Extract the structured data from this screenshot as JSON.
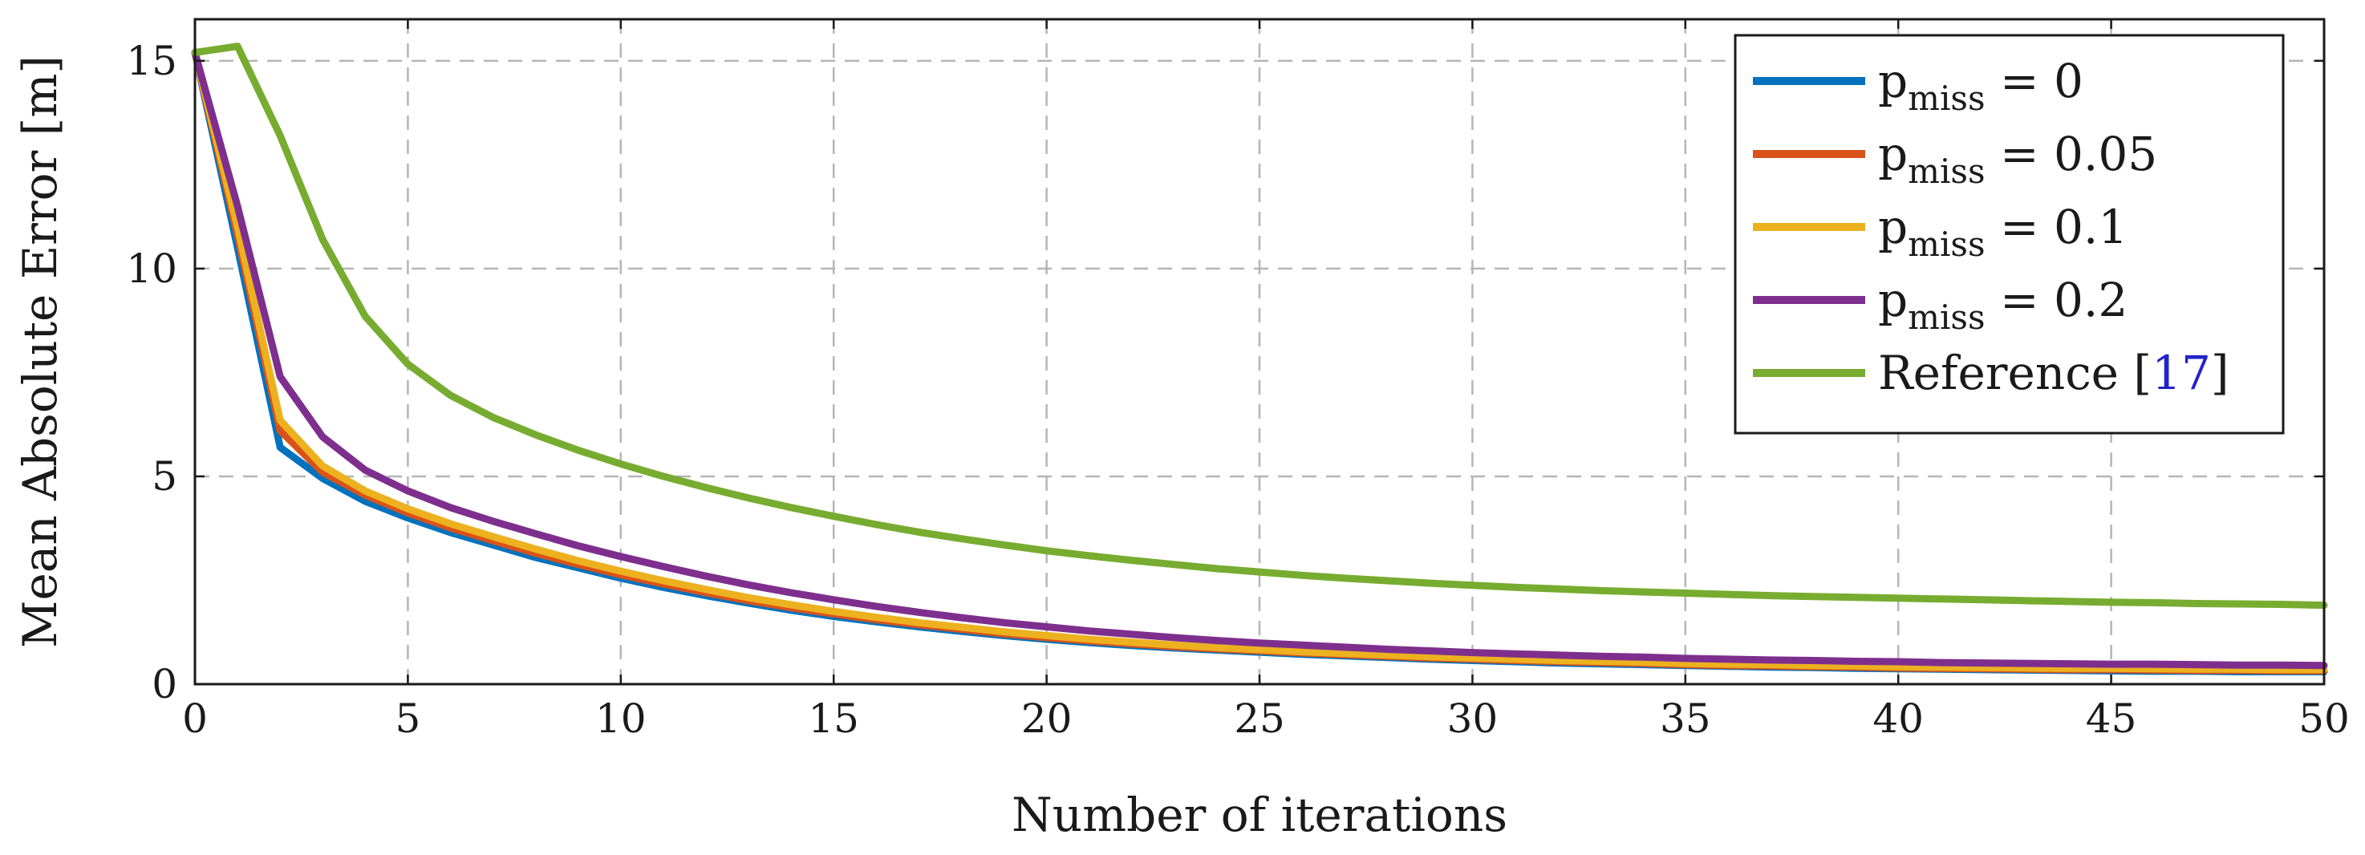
{
  "chart_data": {
    "type": "line",
    "title": "",
    "xlabel": "Number of iterations",
    "ylabel": "Mean Absolute Error [m]",
    "xlim": [
      0,
      50
    ],
    "ylim": [
      0,
      16
    ],
    "xticks": [
      0,
      5,
      10,
      15,
      20,
      25,
      30,
      35,
      40,
      45,
      50
    ],
    "yticks": [
      0,
      5,
      10,
      15
    ],
    "grid": true,
    "legend_position": "top-right",
    "x": [
      0,
      1,
      2,
      3,
      4,
      5,
      6,
      7,
      8,
      9,
      10,
      11,
      12,
      13,
      14,
      15,
      16,
      17,
      18,
      19,
      20,
      21,
      22,
      23,
      24,
      25,
      26,
      27,
      28,
      29,
      30,
      31,
      32,
      33,
      34,
      35,
      36,
      37,
      38,
      39,
      40,
      41,
      42,
      43,
      44,
      45,
      46,
      47,
      48,
      49,
      50
    ],
    "series": [
      {
        "legend_prefix": "p",
        "legend_sub": "miss",
        "legend_suffix": " = 0",
        "color": "#0072BD",
        "values": [
          15.2,
          10.5,
          5.7,
          4.95,
          4.4,
          4.0,
          3.65,
          3.35,
          3.05,
          2.8,
          2.55,
          2.33,
          2.13,
          1.95,
          1.78,
          1.63,
          1.5,
          1.38,
          1.27,
          1.17,
          1.08,
          1.0,
          0.93,
          0.87,
          0.82,
          0.77,
          0.72,
          0.68,
          0.64,
          0.6,
          0.57,
          0.54,
          0.51,
          0.49,
          0.47,
          0.45,
          0.43,
          0.41,
          0.4,
          0.38,
          0.37,
          0.36,
          0.35,
          0.34,
          0.33,
          0.32,
          0.31,
          0.31,
          0.3,
          0.3,
          0.3
        ]
      },
      {
        "legend_prefix": "p",
        "legend_sub": "miss",
        "legend_suffix": " = 0.05",
        "color": "#D95319",
        "values": [
          15.2,
          10.8,
          6.1,
          5.1,
          4.55,
          4.12,
          3.76,
          3.45,
          3.15,
          2.88,
          2.63,
          2.41,
          2.2,
          2.01,
          1.84,
          1.69,
          1.55,
          1.43,
          1.32,
          1.21,
          1.12,
          1.04,
          0.97,
          0.9,
          0.85,
          0.8,
          0.75,
          0.71,
          0.67,
          0.63,
          0.6,
          0.57,
          0.54,
          0.52,
          0.5,
          0.47,
          0.45,
          0.44,
          0.42,
          0.41,
          0.39,
          0.38,
          0.37,
          0.36,
          0.35,
          0.35,
          0.34,
          0.33,
          0.33,
          0.32,
          0.32
        ]
      },
      {
        "legend_prefix": "p",
        "legend_sub": "miss",
        "legend_suffix": " = 0.1",
        "color": "#EDB120",
        "values": [
          15.2,
          11.0,
          6.35,
          5.25,
          4.65,
          4.22,
          3.86,
          3.55,
          3.25,
          2.97,
          2.72,
          2.49,
          2.28,
          2.08,
          1.91,
          1.75,
          1.61,
          1.48,
          1.37,
          1.26,
          1.17,
          1.08,
          1.01,
          0.94,
          0.88,
          0.83,
          0.78,
          0.74,
          0.7,
          0.66,
          0.63,
          0.6,
          0.57,
          0.55,
          0.53,
          0.5,
          0.48,
          0.47,
          0.45,
          0.44,
          0.42,
          0.41,
          0.4,
          0.39,
          0.38,
          0.38,
          0.37,
          0.36,
          0.36,
          0.35,
          0.35
        ]
      },
      {
        "legend_prefix": "p",
        "legend_sub": "miss",
        "legend_suffix": " = 0.2",
        "color": "#7E2F8E",
        "values": [
          15.2,
          11.5,
          7.4,
          5.95,
          5.15,
          4.65,
          4.25,
          3.92,
          3.62,
          3.33,
          3.07,
          2.83,
          2.6,
          2.39,
          2.2,
          2.03,
          1.87,
          1.73,
          1.6,
          1.48,
          1.38,
          1.28,
          1.2,
          1.12,
          1.05,
          0.99,
          0.94,
          0.89,
          0.84,
          0.8,
          0.76,
          0.73,
          0.7,
          0.67,
          0.65,
          0.62,
          0.6,
          0.58,
          0.57,
          0.55,
          0.54,
          0.52,
          0.51,
          0.5,
          0.49,
          0.48,
          0.48,
          0.47,
          0.46,
          0.46,
          0.45
        ]
      },
      {
        "legend_prefix": "Reference [",
        "legend_cite": "17",
        "legend_close": "]",
        "color": "#77AC30",
        "values": [
          15.2,
          15.35,
          13.2,
          10.7,
          8.85,
          7.7,
          6.95,
          6.42,
          6.0,
          5.63,
          5.3,
          5.0,
          4.73,
          4.48,
          4.25,
          4.04,
          3.84,
          3.66,
          3.5,
          3.35,
          3.21,
          3.09,
          2.98,
          2.88,
          2.78,
          2.7,
          2.62,
          2.55,
          2.49,
          2.43,
          2.38,
          2.33,
          2.29,
          2.25,
          2.22,
          2.19,
          2.16,
          2.13,
          2.11,
          2.09,
          2.07,
          2.05,
          2.03,
          2.01,
          1.99,
          1.97,
          1.96,
          1.94,
          1.93,
          1.92,
          1.9
        ]
      }
    ]
  }
}
